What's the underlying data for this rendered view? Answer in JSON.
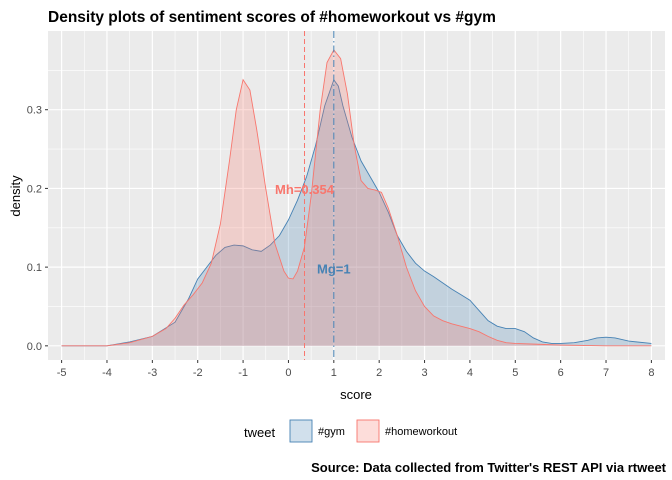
{
  "chart_data": {
    "type": "area",
    "title": "Density plots of sentiment scores of #homeworkout vs #gym",
    "caption": "Source: Data collected from Twitter's REST API via rtweet",
    "xlabel": "score",
    "ylabel": "density",
    "xlim": [
      -5.3,
      8.3
    ],
    "ylim": [
      -0.018,
      0.4
    ],
    "x_ticks": [
      -5,
      -4,
      -3,
      -2,
      -1,
      0,
      1,
      2,
      3,
      4,
      5,
      6,
      7,
      8
    ],
    "y_ticks": [
      0.0,
      0.1,
      0.2,
      0.3
    ],
    "y_tick_labels": [
      "0.0",
      "0.1",
      "0.2",
      "0.3"
    ],
    "grid": true,
    "legend_title": "tweet",
    "legend_position": "bottom",
    "series": [
      {
        "name": "#gym",
        "color": "#4682b4",
        "fill": "#4682b4",
        "points": [
          [
            -5,
            0
          ],
          [
            -4,
            0
          ],
          [
            -3.5,
            0.005
          ],
          [
            -3,
            0.012
          ],
          [
            -2.5,
            0.03
          ],
          [
            -2.2,
            0.06
          ],
          [
            -2,
            0.085
          ],
          [
            -1.8,
            0.1
          ],
          [
            -1.6,
            0.115
          ],
          [
            -1.4,
            0.125
          ],
          [
            -1.2,
            0.128
          ],
          [
            -1,
            0.127
          ],
          [
            -0.8,
            0.122
          ],
          [
            -0.6,
            0.12
          ],
          [
            -0.4,
            0.128
          ],
          [
            -0.2,
            0.14
          ],
          [
            0,
            0.16
          ],
          [
            0.2,
            0.185
          ],
          [
            0.4,
            0.215
          ],
          [
            0.6,
            0.255
          ],
          [
            0.8,
            0.305
          ],
          [
            1,
            0.338
          ],
          [
            1.1,
            0.33
          ],
          [
            1.2,
            0.305
          ],
          [
            1.4,
            0.265
          ],
          [
            1.6,
            0.235
          ],
          [
            1.8,
            0.215
          ],
          [
            2,
            0.195
          ],
          [
            2.2,
            0.17
          ],
          [
            2.4,
            0.14
          ],
          [
            2.6,
            0.12
          ],
          [
            2.8,
            0.105
          ],
          [
            3,
            0.095
          ],
          [
            3.2,
            0.088
          ],
          [
            3.4,
            0.08
          ],
          [
            3.6,
            0.072
          ],
          [
            3.8,
            0.065
          ],
          [
            4,
            0.058
          ],
          [
            4.2,
            0.045
          ],
          [
            4.4,
            0.032
          ],
          [
            4.6,
            0.025
          ],
          [
            4.8,
            0.022
          ],
          [
            5,
            0.022
          ],
          [
            5.2,
            0.018
          ],
          [
            5.4,
            0.01
          ],
          [
            5.6,
            0.005
          ],
          [
            5.8,
            0.003
          ],
          [
            6,
            0.003
          ],
          [
            6.3,
            0.004
          ],
          [
            6.6,
            0.007
          ],
          [
            6.8,
            0.01
          ],
          [
            7,
            0.011
          ],
          [
            7.2,
            0.01
          ],
          [
            7.5,
            0.006
          ],
          [
            8,
            0.003
          ]
        ]
      },
      {
        "name": "#homeworkout",
        "color": "#f8766d",
        "fill": "#f8766d",
        "points": [
          [
            -5,
            0
          ],
          [
            -4,
            0
          ],
          [
            -3.5,
            0.004
          ],
          [
            -3,
            0.012
          ],
          [
            -2.7,
            0.022
          ],
          [
            -2.5,
            0.035
          ],
          [
            -2.3,
            0.052
          ],
          [
            -2.1,
            0.065
          ],
          [
            -1.9,
            0.08
          ],
          [
            -1.7,
            0.105
          ],
          [
            -1.5,
            0.155
          ],
          [
            -1.3,
            0.235
          ],
          [
            -1.15,
            0.3
          ],
          [
            -1,
            0.338
          ],
          [
            -0.85,
            0.325
          ],
          [
            -0.7,
            0.275
          ],
          [
            -0.5,
            0.2
          ],
          [
            -0.3,
            0.13
          ],
          [
            -0.1,
            0.095
          ],
          [
            0,
            0.086
          ],
          [
            0.1,
            0.085
          ],
          [
            0.2,
            0.095
          ],
          [
            0.35,
            0.125
          ],
          [
            0.5,
            0.19
          ],
          [
            0.7,
            0.3
          ],
          [
            0.85,
            0.36
          ],
          [
            1,
            0.376
          ],
          [
            1.15,
            0.365
          ],
          [
            1.3,
            0.32
          ],
          [
            1.45,
            0.255
          ],
          [
            1.6,
            0.21
          ],
          [
            1.75,
            0.2
          ],
          [
            1.9,
            0.198
          ],
          [
            2.05,
            0.195
          ],
          [
            2.2,
            0.175
          ],
          [
            2.4,
            0.14
          ],
          [
            2.6,
            0.1
          ],
          [
            2.8,
            0.07
          ],
          [
            3,
            0.05
          ],
          [
            3.2,
            0.038
          ],
          [
            3.4,
            0.032
          ],
          [
            3.6,
            0.028
          ],
          [
            3.8,
            0.025
          ],
          [
            4,
            0.022
          ],
          [
            4.2,
            0.018
          ],
          [
            4.4,
            0.012
          ],
          [
            4.6,
            0.007
          ],
          [
            4.8,
            0.004
          ],
          [
            5,
            0.003
          ],
          [
            5.5,
            0.002
          ],
          [
            6,
            0.001
          ],
          [
            7,
            0
          ],
          [
            8,
            0
          ]
        ]
      }
    ],
    "vlines": [
      {
        "x": 0.354,
        "color": "#f8766d",
        "style": "dashed"
      },
      {
        "x": 1,
        "color": "#4682b4",
        "style": "dashdot"
      }
    ],
    "annotations": [
      {
        "text": "Mh=0.354",
        "x": 0.354,
        "y": 0.199,
        "color": "#f8766d"
      },
      {
        "text": "Mg=1",
        "x": 1.0,
        "y": 0.098,
        "color": "#4682b4"
      }
    ]
  }
}
